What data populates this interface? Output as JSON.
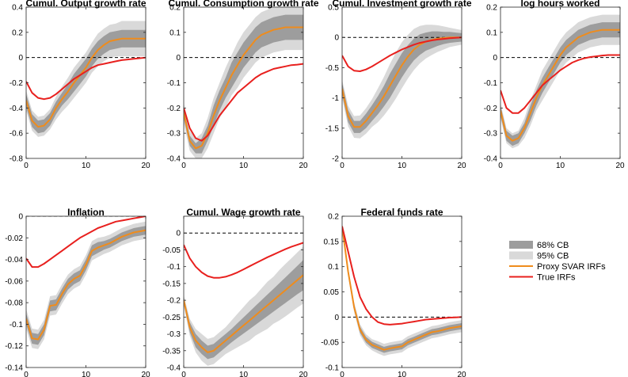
{
  "chart_data": [
    {
      "type": "line",
      "title": "Cumul. Output growth rate",
      "xlim": [
        0,
        20
      ],
      "ylim": [
        -0.8,
        0.4
      ],
      "xticks": [
        0,
        10,
        20
      ],
      "yticks": [
        -0.8,
        -0.6,
        -0.4,
        -0.2,
        0,
        0.2,
        0.4
      ],
      "ytick_labels": [
        "-0.8",
        "-0.6",
        "-0.4",
        "-0.2",
        "0",
        "0.2",
        "0.4"
      ],
      "x": [
        0,
        1,
        2,
        3,
        4,
        5,
        6,
        7,
        8,
        9,
        10,
        11,
        12,
        13,
        14,
        15,
        16,
        17,
        18,
        19,
        20
      ],
      "proxy": [
        -0.34,
        -0.5,
        -0.55,
        -0.54,
        -0.49,
        -0.4,
        -0.33,
        -0.27,
        -0.2,
        -0.14,
        -0.08,
        0,
        0.06,
        0.1,
        0.13,
        0.14,
        0.15,
        0.15,
        0.15,
        0.15,
        0.15
      ],
      "band68": [
        0.05,
        0.05,
        0.05,
        0.05,
        0.05,
        0.05,
        0.05,
        0.06,
        0.07,
        0.07,
        0.07,
        0.07,
        0.07,
        0.07,
        0.07,
        0.07,
        0.07,
        0.07,
        0.07,
        0.07,
        0.07
      ],
      "band95": [
        0.08,
        0.08,
        0.08,
        0.08,
        0.08,
        0.09,
        0.1,
        0.11,
        0.12,
        0.12,
        0.12,
        0.12,
        0.13,
        0.13,
        0.13,
        0.13,
        0.14,
        0.14,
        0.14,
        0.14,
        0.14
      ],
      "true": [
        -0.19,
        -0.28,
        -0.32,
        -0.33,
        -0.32,
        -0.29,
        -0.25,
        -0.21,
        -0.17,
        -0.14,
        -0.11,
        -0.08,
        -0.06,
        -0.05,
        -0.04,
        -0.03,
        -0.02,
        -0.015,
        -0.01,
        -0.005,
        0
      ]
    },
    {
      "type": "line",
      "title": "Cumul. Consumption growth rate",
      "xlim": [
        0,
        20
      ],
      "ylim": [
        -0.4,
        0.2
      ],
      "xticks": [
        0,
        10,
        20
      ],
      "yticks": [
        -0.4,
        -0.3,
        -0.2,
        -0.1,
        0,
        0.1,
        0.2
      ],
      "ytick_labels": [
        "-0.4",
        "-0.3",
        "-0.2",
        "-0.1",
        "0",
        "0.1",
        "0.2"
      ],
      "x": [
        0,
        1,
        2,
        3,
        4,
        5,
        6,
        7,
        8,
        9,
        10,
        11,
        12,
        13,
        14,
        15,
        16,
        17,
        18,
        19,
        20
      ],
      "proxy": [
        -0.22,
        -0.33,
        -0.36,
        -0.35,
        -0.3,
        -0.23,
        -0.17,
        -0.12,
        -0.07,
        -0.03,
        0.01,
        0.04,
        0.07,
        0.09,
        0.1,
        0.11,
        0.115,
        0.12,
        0.12,
        0.12,
        0.12
      ],
      "band68": [
        0.02,
        0.02,
        0.02,
        0.03,
        0.03,
        0.04,
        0.04,
        0.04,
        0.05,
        0.05,
        0.05,
        0.05,
        0.05,
        0.05,
        0.05,
        0.05,
        0.05,
        0.05,
        0.05,
        0.05,
        0.05
      ],
      "band95": [
        0.04,
        0.04,
        0.04,
        0.05,
        0.06,
        0.07,
        0.07,
        0.08,
        0.08,
        0.09,
        0.09,
        0.09,
        0.09,
        0.09,
        0.09,
        0.09,
        0.09,
        0.09,
        0.09,
        0.09,
        0.09
      ],
      "true": [
        -0.2,
        -0.28,
        -0.32,
        -0.33,
        -0.31,
        -0.27,
        -0.23,
        -0.2,
        -0.17,
        -0.14,
        -0.12,
        -0.1,
        -0.08,
        -0.065,
        -0.055,
        -0.045,
        -0.04,
        -0.035,
        -0.03,
        -0.028,
        -0.025
      ]
    },
    {
      "type": "line",
      "title": "Cumul. Investment growth rate",
      "xlim": [
        0,
        20
      ],
      "ylim": [
        -2,
        0.5
      ],
      "xticks": [
        0,
        10,
        20
      ],
      "yticks": [
        -2,
        -1.5,
        -1,
        -0.5,
        0,
        0.5
      ],
      "ytick_labels": [
        "-2",
        "-1.5",
        "-1",
        "-0.5",
        "0",
        "0.5"
      ],
      "x": [
        0,
        1,
        2,
        3,
        4,
        5,
        6,
        7,
        8,
        9,
        10,
        11,
        12,
        13,
        14,
        15,
        16,
        17,
        18,
        19,
        20
      ],
      "proxy": [
        -0.85,
        -1.3,
        -1.48,
        -1.48,
        -1.38,
        -1.25,
        -1.12,
        -0.97,
        -0.8,
        -0.63,
        -0.46,
        -0.32,
        -0.2,
        -0.12,
        -0.07,
        -0.04,
        -0.02,
        -0.01,
        0,
        0,
        0
      ],
      "band68": [
        0.1,
        0.1,
        0.1,
        0.1,
        0.12,
        0.13,
        0.15,
        0.17,
        0.2,
        0.2,
        0.2,
        0.19,
        0.18,
        0.17,
        0.15,
        0.14,
        0.12,
        0.1,
        0.09,
        0.08,
        0.07
      ],
      "band95": [
        0.15,
        0.17,
        0.18,
        0.19,
        0.21,
        0.23,
        0.28,
        0.32,
        0.36,
        0.38,
        0.38,
        0.36,
        0.34,
        0.31,
        0.28,
        0.25,
        0.22,
        0.19,
        0.16,
        0.14,
        0.12
      ],
      "true": [
        -0.3,
        -0.48,
        -0.55,
        -0.56,
        -0.53,
        -0.48,
        -0.42,
        -0.36,
        -0.3,
        -0.25,
        -0.2,
        -0.16,
        -0.12,
        -0.09,
        -0.07,
        -0.05,
        -0.035,
        -0.025,
        -0.015,
        -0.008,
        0
      ]
    },
    {
      "type": "line",
      "title": "log hours worked",
      "xlim": [
        0,
        20
      ],
      "ylim": [
        -0.4,
        0.2
      ],
      "xticks": [
        0,
        10,
        20
      ],
      "yticks": [
        -0.4,
        -0.3,
        -0.2,
        -0.1,
        0,
        0.1,
        0.2
      ],
      "ytick_labels": [
        "-0.4",
        "-0.3",
        "-0.2",
        "-0.1",
        "0",
        "0.1",
        "0.2"
      ],
      "x": [
        0,
        1,
        2,
        3,
        4,
        5,
        6,
        7,
        8,
        9,
        10,
        11,
        12,
        13,
        14,
        15,
        16,
        17,
        18,
        19,
        20
      ],
      "proxy": [
        -0.21,
        -0.31,
        -0.33,
        -0.32,
        -0.28,
        -0.22,
        -0.16,
        -0.11,
        -0.07,
        -0.03,
        0.01,
        0.04,
        0.06,
        0.08,
        0.09,
        0.1,
        0.105,
        0.11,
        0.11,
        0.11,
        0.11
      ],
      "band68": [
        0.02,
        0.02,
        0.02,
        0.02,
        0.02,
        0.03,
        0.03,
        0.03,
        0.03,
        0.03,
        0.03,
        0.03,
        0.03,
        0.03,
        0.03,
        0.03,
        0.03,
        0.03,
        0.03,
        0.03,
        0.03
      ],
      "band95": [
        0.03,
        0.03,
        0.03,
        0.03,
        0.04,
        0.05,
        0.05,
        0.06,
        0.06,
        0.06,
        0.06,
        0.06,
        0.06,
        0.06,
        0.06,
        0.06,
        0.06,
        0.06,
        0.06,
        0.06,
        0.06
      ],
      "true": [
        -0.13,
        -0.2,
        -0.22,
        -0.22,
        -0.2,
        -0.17,
        -0.14,
        -0.11,
        -0.09,
        -0.07,
        -0.05,
        -0.035,
        -0.02,
        -0.01,
        -0.003,
        0.002,
        0.005,
        0.008,
        0.01,
        0.01,
        0.01
      ]
    },
    {
      "type": "line",
      "title": "Inflation",
      "xlim": [
        0,
        20
      ],
      "ylim": [
        -0.14,
        0
      ],
      "xticks": [
        0,
        10,
        20
      ],
      "yticks": [
        -0.14,
        -0.12,
        -0.1,
        -0.08,
        -0.06,
        -0.04,
        -0.02,
        0
      ],
      "ytick_labels": [
        "-0.14",
        "-0.12",
        "-0.1",
        "-0.08",
        "-0.06",
        "-0.04",
        "-0.02",
        "0"
      ],
      "x": [
        0,
        1,
        2,
        3,
        4,
        5,
        6,
        7,
        8,
        9,
        10,
        11,
        12,
        13,
        14,
        15,
        16,
        17,
        18,
        19,
        20
      ],
      "proxy": [
        -0.095,
        -0.113,
        -0.114,
        -0.105,
        -0.083,
        -0.082,
        -0.072,
        -0.063,
        -0.058,
        -0.055,
        -0.045,
        -0.032,
        -0.029,
        -0.027,
        -0.025,
        -0.022,
        -0.019,
        -0.017,
        -0.015,
        -0.014,
        -0.013
      ],
      "band68": [
        0.005,
        0.005,
        0.005,
        0.005,
        0.005,
        0.005,
        0.005,
        0.005,
        0.005,
        0.005,
        0.005,
        0.005,
        0.005,
        0.004,
        0.004,
        0.004,
        0.004,
        0.004,
        0.004,
        0.004,
        0.004
      ],
      "band95": [
        0.009,
        0.009,
        0.009,
        0.009,
        0.009,
        0.009,
        0.009,
        0.009,
        0.009,
        0.009,
        0.009,
        0.009,
        0.009,
        0.008,
        0.008,
        0.008,
        0.008,
        0.008,
        0.008,
        0.008,
        0.008
      ],
      "true": [
        -0.039,
        -0.047,
        -0.047,
        -0.044,
        -0.04,
        -0.036,
        -0.032,
        -0.028,
        -0.024,
        -0.02,
        -0.017,
        -0.014,
        -0.011,
        -0.009,
        -0.007,
        -0.005,
        -0.004,
        -0.003,
        -0.002,
        -0.001,
        0
      ]
    },
    {
      "type": "line",
      "title": "Cumul. Wage growth rate",
      "xlim": [
        0,
        20
      ],
      "ylim": [
        -0.4,
        0.05
      ],
      "xticks": [
        0,
        10,
        20
      ],
      "yticks": [
        -0.4,
        -0.35,
        -0.3,
        -0.25,
        -0.2,
        -0.15,
        -0.1,
        -0.05,
        0
      ],
      "ytick_labels": [
        "-0.4",
        "-0.35",
        "-0.3",
        "-0.25",
        "-0.2",
        "-0.15",
        "-0.1",
        "-0.05",
        "0"
      ],
      "x": [
        0,
        1,
        2,
        3,
        4,
        5,
        6,
        7,
        8,
        9,
        10,
        11,
        12,
        13,
        14,
        15,
        16,
        17,
        18,
        19,
        20
      ],
      "proxy": [
        -0.2,
        -0.28,
        -0.32,
        -0.34,
        -0.355,
        -0.35,
        -0.335,
        -0.32,
        -0.305,
        -0.29,
        -0.275,
        -0.26,
        -0.245,
        -0.23,
        -0.215,
        -0.2,
        -0.185,
        -0.17,
        -0.155,
        -0.14,
        -0.125
      ],
      "band68": [
        0.01,
        0.015,
        0.02,
        0.02,
        0.02,
        0.02,
        0.02,
        0.02,
        0.02,
        0.022,
        0.024,
        0.026,
        0.028,
        0.03,
        0.032,
        0.034,
        0.036,
        0.038,
        0.04,
        0.042,
        0.045
      ],
      "band95": [
        0.015,
        0.025,
        0.035,
        0.04,
        0.04,
        0.04,
        0.04,
        0.04,
        0.045,
        0.05,
        0.055,
        0.06,
        0.06,
        0.065,
        0.07,
        0.07,
        0.075,
        0.078,
        0.08,
        0.082,
        0.085
      ],
      "true": [
        -0.035,
        -0.075,
        -0.1,
        -0.117,
        -0.128,
        -0.133,
        -0.133,
        -0.13,
        -0.124,
        -0.117,
        -0.108,
        -0.099,
        -0.09,
        -0.081,
        -0.072,
        -0.064,
        -0.056,
        -0.048,
        -0.041,
        -0.035,
        -0.029
      ]
    },
    {
      "type": "line",
      "title": "Federal funds rate",
      "xlim": [
        0,
        20
      ],
      "ylim": [
        -0.1,
        0.2
      ],
      "xticks": [
        0,
        10,
        20
      ],
      "yticks": [
        -0.1,
        -0.05,
        0,
        0.05,
        0.1,
        0.15,
        0.2
      ],
      "ytick_labels": [
        "-0.1",
        "-0.05",
        "0",
        "0.05",
        "0.1",
        "0.15",
        "0.2"
      ],
      "x": [
        0,
        1,
        2,
        3,
        4,
        5,
        6,
        7,
        8,
        9,
        10,
        11,
        12,
        13,
        14,
        15,
        16,
        17,
        18,
        19,
        20
      ],
      "proxy": [
        0.18,
        0.09,
        0.02,
        -0.025,
        -0.045,
        -0.055,
        -0.06,
        -0.065,
        -0.062,
        -0.06,
        -0.058,
        -0.05,
        -0.045,
        -0.04,
        -0.035,
        -0.03,
        -0.028,
        -0.025,
        -0.022,
        -0.02,
        -0.018
      ],
      "band68": [
        0.003,
        0.004,
        0.005,
        0.006,
        0.006,
        0.006,
        0.006,
        0.006,
        0.006,
        0.006,
        0.006,
        0.006,
        0.006,
        0.006,
        0.006,
        0.006,
        0.006,
        0.006,
        0.006,
        0.006,
        0.006
      ],
      "band95": [
        0.006,
        0.008,
        0.01,
        0.011,
        0.011,
        0.011,
        0.012,
        0.012,
        0.012,
        0.012,
        0.012,
        0.012,
        0.012,
        0.012,
        0.012,
        0.012,
        0.012,
        0.012,
        0.012,
        0.012,
        0.012
      ],
      "true": [
        0.18,
        0.13,
        0.08,
        0.04,
        0.016,
        0,
        -0.01,
        -0.014,
        -0.015,
        -0.014,
        -0.013,
        -0.011,
        -0.009,
        -0.007,
        -0.005,
        -0.004,
        -0.003,
        -0.002,
        -0.001,
        -0.0005,
        0
      ]
    }
  ],
  "legend": {
    "items": [
      {
        "label": "68% CB",
        "kind": "patch",
        "color": "#9d9d9d"
      },
      {
        "label": "95% CB",
        "kind": "patch",
        "color": "#d9d9d9"
      },
      {
        "label": "Proxy SVAR IRFs",
        "kind": "line",
        "color": "#ef8c1c"
      },
      {
        "label": "True IRFs",
        "kind": "line",
        "color": "#e8201e"
      }
    ]
  },
  "colors": {
    "band68": "#9d9d9d",
    "band95": "#d9d9d9",
    "proxy": "#ef8c1c",
    "true": "#e8201e",
    "zero_line": "#000000"
  }
}
